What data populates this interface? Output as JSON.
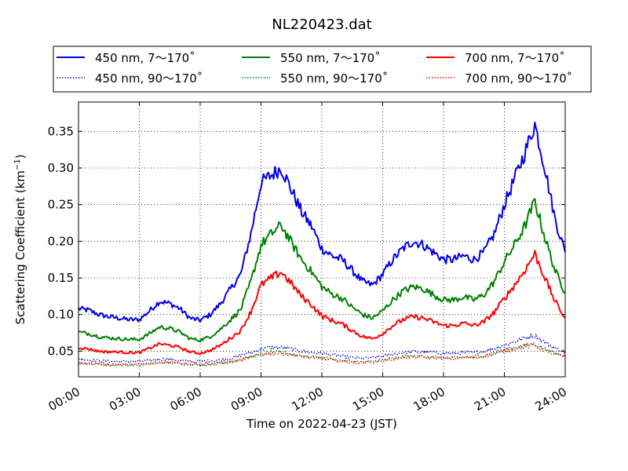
{
  "chart_data": {
    "type": "line",
    "title": "NL220423.dat",
    "xlabel": "Time on 2022-04-23 (JST)",
    "ylabel_text": "Scattering Coefficient (km",
    "ylabel_unit_exp": "−1",
    "ylabel_close": ")",
    "xlim_hours": [
      0,
      24
    ],
    "ylim": [
      0.015,
      0.39
    ],
    "x_ticks": [
      {
        "hour": 0,
        "label": "00:00"
      },
      {
        "hour": 3,
        "label": "03:00"
      },
      {
        "hour": 6,
        "label": "06:00"
      },
      {
        "hour": 9,
        "label": "09:00"
      },
      {
        "hour": 12,
        "label": "12:00"
      },
      {
        "hour": 15,
        "label": "15:00"
      },
      {
        "hour": 18,
        "label": "18:00"
      },
      {
        "hour": 21,
        "label": "21:00"
      },
      {
        "hour": 24,
        "label": "24:00"
      }
    ],
    "y_ticks": [
      {
        "value": 0.05,
        "label": "0.05"
      },
      {
        "value": 0.1,
        "label": "0.10"
      },
      {
        "value": 0.15,
        "label": "0.15"
      },
      {
        "value": 0.2,
        "label": "0.20"
      },
      {
        "value": 0.25,
        "label": "0.25"
      },
      {
        "value": 0.3,
        "label": "0.30"
      },
      {
        "value": 0.35,
        "label": "0.35"
      }
    ],
    "grid": true,
    "legend_position": "top",
    "x_hours": [
      0.0,
      0.5,
      1.0,
      1.5,
      2.0,
      2.5,
      3.0,
      3.5,
      4.0,
      4.5,
      5.0,
      5.5,
      6.0,
      6.5,
      7.0,
      7.5,
      8.0,
      8.5,
      9.0,
      9.5,
      10.0,
      10.5,
      11.0,
      11.5,
      12.0,
      12.5,
      13.0,
      13.5,
      14.0,
      14.5,
      15.0,
      15.5,
      16.0,
      16.5,
      17.0,
      17.5,
      18.0,
      18.5,
      19.0,
      19.5,
      20.0,
      20.5,
      21.0,
      21.5,
      22.0,
      22.5,
      23.0,
      23.5,
      24.0
    ],
    "series": [
      {
        "name": "450 nm, 7～170˚",
        "color": "#0000ee",
        "style": "solid",
        "values": [
          0.108,
          0.106,
          0.1,
          0.097,
          0.095,
          0.093,
          0.093,
          0.105,
          0.118,
          0.115,
          0.108,
          0.095,
          0.092,
          0.1,
          0.115,
          0.135,
          0.155,
          0.21,
          0.28,
          0.29,
          0.3,
          0.27,
          0.24,
          0.22,
          0.19,
          0.18,
          0.175,
          0.16,
          0.145,
          0.14,
          0.155,
          0.175,
          0.19,
          0.2,
          0.195,
          0.185,
          0.175,
          0.175,
          0.18,
          0.175,
          0.185,
          0.21,
          0.25,
          0.285,
          0.32,
          0.36,
          0.3,
          0.23,
          0.185
        ]
      },
      {
        "name": "450 nm, 90～170˚",
        "color": "#0000ee",
        "style": "dotted",
        "values": [
          0.04,
          0.038,
          0.037,
          0.036,
          0.036,
          0.036,
          0.036,
          0.037,
          0.039,
          0.039,
          0.037,
          0.036,
          0.036,
          0.037,
          0.038,
          0.04,
          0.044,
          0.048,
          0.053,
          0.055,
          0.055,
          0.053,
          0.05,
          0.048,
          0.047,
          0.045,
          0.043,
          0.041,
          0.04,
          0.041,
          0.043,
          0.046,
          0.048,
          0.049,
          0.049,
          0.048,
          0.047,
          0.047,
          0.048,
          0.048,
          0.05,
          0.054,
          0.058,
          0.063,
          0.068,
          0.072,
          0.062,
          0.054,
          0.049
        ]
      },
      {
        "name": "550 nm, 7～170˚",
        "color": "#008000",
        "style": "solid",
        "values": [
          0.076,
          0.074,
          0.07,
          0.068,
          0.067,
          0.066,
          0.066,
          0.074,
          0.083,
          0.081,
          0.076,
          0.067,
          0.065,
          0.07,
          0.08,
          0.093,
          0.107,
          0.145,
          0.195,
          0.21,
          0.222,
          0.198,
          0.175,
          0.158,
          0.138,
          0.128,
          0.122,
          0.11,
          0.1,
          0.095,
          0.105,
          0.12,
          0.132,
          0.138,
          0.135,
          0.127,
          0.12,
          0.12,
          0.124,
          0.12,
          0.127,
          0.145,
          0.172,
          0.195,
          0.22,
          0.255,
          0.205,
          0.16,
          0.13
        ]
      },
      {
        "name": "550 nm, 90～170˚",
        "color": "#008000",
        "style": "dotted",
        "values": [
          0.034,
          0.033,
          0.032,
          0.031,
          0.031,
          0.031,
          0.031,
          0.032,
          0.034,
          0.034,
          0.033,
          0.032,
          0.031,
          0.032,
          0.033,
          0.035,
          0.038,
          0.042,
          0.046,
          0.048,
          0.048,
          0.046,
          0.044,
          0.042,
          0.041,
          0.039,
          0.037,
          0.036,
          0.035,
          0.036,
          0.038,
          0.04,
          0.042,
          0.043,
          0.043,
          0.042,
          0.041,
          0.041,
          0.042,
          0.042,
          0.044,
          0.048,
          0.052,
          0.055,
          0.058,
          0.06,
          0.053,
          0.047,
          0.043
        ]
      },
      {
        "name": "700 nm, 7～170˚",
        "color": "#ff0000",
        "style": "solid",
        "values": [
          0.055,
          0.053,
          0.05,
          0.049,
          0.049,
          0.048,
          0.048,
          0.054,
          0.06,
          0.058,
          0.055,
          0.049,
          0.047,
          0.051,
          0.058,
          0.068,
          0.078,
          0.104,
          0.14,
          0.15,
          0.158,
          0.142,
          0.125,
          0.113,
          0.098,
          0.092,
          0.087,
          0.078,
          0.07,
          0.067,
          0.074,
          0.085,
          0.093,
          0.097,
          0.095,
          0.09,
          0.085,
          0.085,
          0.088,
          0.085,
          0.09,
          0.103,
          0.122,
          0.14,
          0.16,
          0.183,
          0.15,
          0.118,
          0.095
        ]
      },
      {
        "name": "700 nm, 90～170˚",
        "color": "#ff0000",
        "style": "dotted",
        "values": [
          0.034,
          0.033,
          0.033,
          0.032,
          0.032,
          0.032,
          0.032,
          0.033,
          0.035,
          0.035,
          0.034,
          0.033,
          0.032,
          0.033,
          0.034,
          0.036,
          0.038,
          0.042,
          0.045,
          0.047,
          0.047,
          0.045,
          0.043,
          0.041,
          0.04,
          0.038,
          0.036,
          0.035,
          0.034,
          0.035,
          0.037,
          0.039,
          0.041,
          0.042,
          0.042,
          0.041,
          0.04,
          0.04,
          0.041,
          0.041,
          0.043,
          0.046,
          0.05,
          0.053,
          0.056,
          0.058,
          0.051,
          0.046,
          0.042
        ]
      }
    ]
  }
}
